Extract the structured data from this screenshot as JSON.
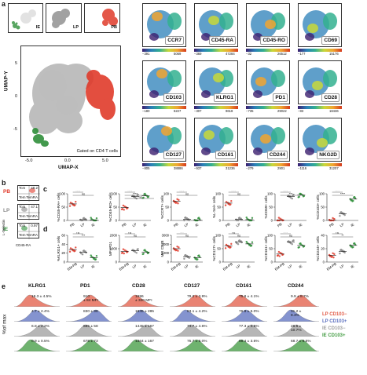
{
  "panels": {
    "a": "a",
    "b": "b",
    "c": "c",
    "d": "d",
    "e": "e"
  },
  "colors": {
    "PB": "#e03b2b",
    "LP": "#8a8a8a",
    "IE": "#2f8f3a",
    "LPneg": "#e25a45",
    "LPpos": "#5b6fbf",
    "IEneg": "#9e9e9e",
    "IEpos": "#3f9a3f"
  },
  "umap": {
    "mini_labels": [
      "IE",
      "LP",
      "PB"
    ],
    "ylabel": "UMAP-Y",
    "xlabel": "UMAP-X",
    "gated": "Gated on CD4 T cells",
    "x_ticks": [
      "-5.0",
      "0.0",
      "5.0"
    ],
    "y_ticks": [
      "-5",
      "0",
      "5"
    ]
  },
  "markers": [
    {
      "name": "CCR7",
      "min": "−391",
      "max": "5069"
    },
    {
      "name": "CD45-RA",
      "min": "−369",
      "max": "47284"
    },
    {
      "name": "CD45-RO",
      "min": "−32",
      "max": "26512"
    },
    {
      "name": "CD69",
      "min": "−177",
      "max": "15176"
    },
    {
      "name": "CD103",
      "min": "−180",
      "max": "6227"
    },
    {
      "name": "KLRG1",
      "min": "−307",
      "max": "9618"
    },
    {
      "name": "PD1",
      "min": "−735",
      "max": "29022"
    },
    {
      "name": "CD28",
      "min": "−83",
      "max": "18436"
    },
    {
      "name": "CD127",
      "min": "−805",
      "max": "38886"
    },
    {
      "name": "CD161",
      "min": "−937",
      "max": "31236"
    },
    {
      "name": "CD244",
      "min": "−279",
      "max": "2901"
    },
    {
      "name": "NKG2D",
      "min": "−1116",
      "max": "31207"
    }
  ],
  "flow_b": {
    "rows": [
      {
        "label": "PB",
        "q": [
          "Tcm",
          "Tn"
        ],
        "vals": [
          "48.2",
          "47.5"
        ]
      },
      {
        "label": "LP",
        "q": [
          "Tcm",
          "Tn"
        ],
        "vals": [
          "47.1",
          "0.17"
        ]
      },
      {
        "label": "IE",
        "q": [
          "Tcm",
          "Tn"
        ],
        "vals": [
          "0.97",
          "0.89"
        ]
      }
    ],
    "x_label": "CD45-RA",
    "y_label": "L-Selectin",
    "q_text": [
      "Tem",
      "TemRA"
    ]
  },
  "chart_data": [
    {
      "type": "scatter",
      "panel": "c",
      "ylabel": "%CD45-RA+ cells",
      "categories": [
        "PB",
        "LP",
        "IE"
      ],
      "ylim": [
        0,
        100
      ],
      "ticks": [
        "0",
        "50",
        "100"
      ],
      "means": [
        62,
        3,
        2
      ],
      "sig": [
        "****",
        "ns"
      ]
    },
    {
      "type": "scatter",
      "panel": "c",
      "ylabel": "%CD45-RO+ cells",
      "categories": [
        "PB",
        "LP",
        "IE"
      ],
      "ylim": [
        0,
        100
      ],
      "ticks": [
        "0",
        "50",
        "100"
      ],
      "means": [
        48,
        90,
        92
      ],
      "sig": [
        "****",
        "****",
        "ns"
      ]
    },
    {
      "type": "scatter",
      "panel": "c",
      "ylabel": "%CCR7+ cells",
      "categories": [
        "PB",
        "LP",
        "IE"
      ],
      "ylim": [
        0,
        100
      ],
      "ticks": [
        "0",
        "50",
        "100"
      ],
      "means": [
        72,
        5,
        2
      ],
      "sig": [
        "****",
        "ns"
      ]
    },
    {
      "type": "scatter",
      "panel": "c",
      "ylabel": "%L-Sel+ cells",
      "categories": [
        "PB",
        "LP",
        "IE"
      ],
      "ylim": [
        0,
        100
      ],
      "ticks": [
        "0",
        "50",
        "100"
      ],
      "means": [
        65,
        4,
        3
      ],
      "sig": [
        "****",
        "ns"
      ]
    },
    {
      "type": "scatter",
      "panel": "c",
      "ylabel": "%CD69+ cells",
      "categories": [
        "PB",
        "LP",
        "IE"
      ],
      "ylim": [
        0,
        100
      ],
      "ticks": [
        "0",
        "50",
        "100"
      ],
      "means": [
        2,
        90,
        95
      ],
      "sig": [
        "****",
        "***"
      ]
    },
    {
      "type": "scatter",
      "panel": "c",
      "ylabel": "%CD103+ cells",
      "categories": [
        "PB",
        "LP",
        "IE"
      ],
      "ylim": [
        0,
        100
      ],
      "ticks": [
        "0",
        "50",
        "100"
      ],
      "means": [
        1,
        25,
        80
      ],
      "sig": [
        "****",
        "****"
      ]
    },
    {
      "type": "scatter",
      "panel": "d",
      "ylabel": "%KLRG1+ cells",
      "categories": [
        "EM-PB",
        "LP",
        "IE"
      ],
      "ylim": [
        0,
        60
      ],
      "ticks": [
        "0",
        "20",
        "40",
        "60"
      ],
      "means": [
        28,
        22,
        10
      ],
      "sig": [
        "ns",
        "***"
      ]
    },
    {
      "type": "scatter",
      "panel": "d",
      "ylabel": "MFI PD1",
      "categories": [
        "EM-PB",
        "LP",
        "IE"
      ],
      "ylim": [
        0,
        2000
      ],
      "ticks": [
        "0",
        "1000",
        "2000"
      ],
      "means": [
        800,
        850,
        750
      ],
      "sig": [
        "ns",
        "ns"
      ]
    },
    {
      "type": "scatter",
      "panel": "d",
      "ylabel": "MFI CD28",
      "categories": [
        "EM-PB",
        "LP",
        "IE"
      ],
      "ylim": [
        0,
        3000
      ],
      "ticks": [
        "0",
        "1000",
        "2000",
        "3000"
      ],
      "means": [
        1500,
        600,
        500
      ],
      "sig": [
        "***",
        "ns"
      ]
    },
    {
      "type": "scatter",
      "panel": "d",
      "ylabel": "%CD127+ cells",
      "categories": [
        "EM-PB",
        "LP",
        "IE"
      ],
      "ylim": [
        0,
        100
      ],
      "ticks": [
        "0",
        "50",
        "100"
      ],
      "means": [
        60,
        75,
        68
      ],
      "sig": [
        "ns",
        "ns"
      ]
    },
    {
      "type": "scatter",
      "panel": "d",
      "ylabel": "%CD161+ cells",
      "categories": [
        "EM-PB",
        "LP",
        "IE"
      ],
      "ylim": [
        0,
        100
      ],
      "ticks": [
        "0",
        "50",
        "100"
      ],
      "means": [
        30,
        75,
        62
      ],
      "sig": [
        "****",
        "ns"
      ]
    },
    {
      "type": "scatter",
      "panel": "d",
      "ylabel": "%CD244+ cells",
      "categories": [
        "EM-PB",
        "LP",
        "IE"
      ],
      "ylim": [
        0,
        40
      ],
      "ticks": [
        "0",
        "20",
        "40"
      ],
      "means": [
        10,
        16,
        25
      ],
      "sig": [
        "ns",
        "**"
      ]
    }
  ],
  "hist": {
    "ylabel": "%of max",
    "markers": [
      "KLRG1",
      "PD1",
      "CD28",
      "CD127",
      "CD161",
      "CD244"
    ],
    "legend": [
      "LP CD103−",
      "LP CD103+",
      "IE CD103−",
      "IE CD103+"
    ],
    "rows": [
      [
        "19.3 ± 4.5%",
        "910\n± 84 MFI",
        "1996\n± 320 MFI",
        "79.2 ± 3.9%",
        "75.8 ± 4.1%",
        "9.9 ± 8.7%"
      ],
      [
        "4.7 ± 2.4%",
        "830 ± 98",
        "1645 ± 285",
        "83.1 ± 4.2%",
        "76.8 ± 5.0%",
        "31.2 ±\n8.3%"
      ],
      [
        "6.8 ± 2.2%",
        "685 ± 58",
        "1445 ± 167",
        "74.7 ± 4.6%",
        "77.3 ± 4.5%",
        "26.5 ±\n10.7%"
      ],
      [
        "0.9 ± 0.5%",
        "675 ± 73",
        "1364 ± 167",
        "75.7 ± 6.0%",
        "88.4 ± 3.6%",
        "68.7 ± 6.5%"
      ]
    ]
  }
}
